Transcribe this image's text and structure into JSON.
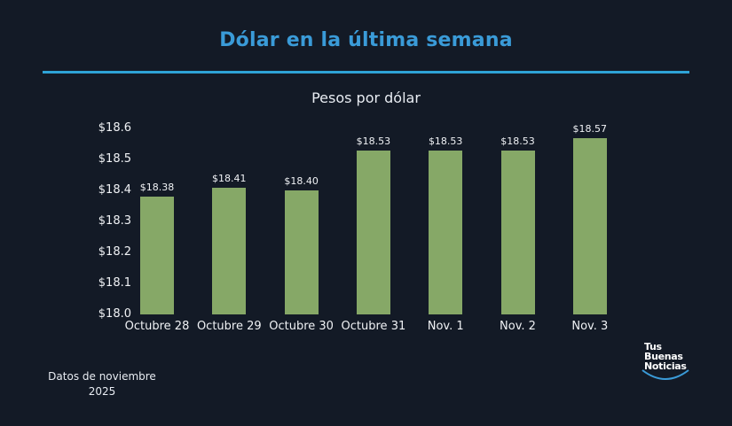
{
  "header": {
    "title": "Dólar en la última semana",
    "rule_color": "#2ea3d6",
    "title_color": "#3a9bd8"
  },
  "chart_data": {
    "type": "bar",
    "title": "Pesos por dólar",
    "xlabel": "",
    "ylabel": "",
    "categories": [
      "Octubre 28",
      "Octubre 29",
      "Octubre 30",
      "Octubre 31",
      "Nov. 1",
      "Nov. 2",
      "Nov. 3"
    ],
    "values": [
      18.38,
      18.41,
      18.4,
      18.53,
      18.53,
      18.53,
      18.57
    ],
    "value_labels": [
      "$18.38",
      "$18.41",
      "$18.40",
      "$18.53",
      "$18.53",
      "$18.53",
      "$18.57"
    ],
    "ylim": [
      18.0,
      18.6
    ],
    "yticks": [
      "$18.6",
      "$18.5",
      "$18.4",
      "$18.3",
      "$18.2",
      "$18.1",
      "$18.0"
    ],
    "grid": false,
    "legend": null,
    "bar_color": "#86a867"
  },
  "footer": {
    "note_line1": "Datos de noviembre",
    "note_line2": "2025",
    "logo_line1": "Tus",
    "logo_line2": "Buenas",
    "logo_line3": "Noticias"
  }
}
